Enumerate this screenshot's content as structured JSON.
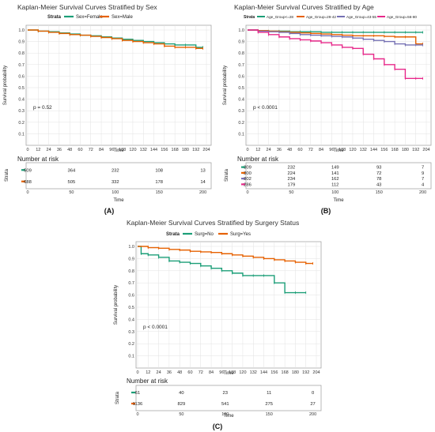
{
  "panels": [
    {
      "label": "(A)",
      "title": "Kaplan-Meier Survival Curves Stratified by Sex",
      "legend_title": "Strata",
      "ylabel": "Survival probability",
      "xlabel": "Time",
      "pvalue": "p = 0.52",
      "risk_title": "Number at risk",
      "risk_ylabel": "Strata",
      "risk_xlabel": "Time",
      "risk_rows": [
        [
          "509",
          "364",
          "232",
          "108",
          "13"
        ],
        [
          "688",
          "505",
          "332",
          "178",
          "14"
        ]
      ]
    },
    {
      "label": "(B)",
      "title": "Kaplan-Meier Survival Curves Stratified by Age",
      "legend_title": "Strata",
      "ylabel": "Survival probability",
      "xlabel": "Time",
      "pvalue": "p < 0.0001",
      "risk_title": "Number at risk",
      "risk_ylabel": "Strata",
      "risk_xlabel": "Time",
      "risk_rows": [
        [
          "309",
          "232",
          "149",
          "93",
          "7"
        ],
        [
          "300",
          "224",
          "141",
          "72",
          "9"
        ],
        [
          "302",
          "234",
          "162",
          "78",
          "7"
        ],
        [
          "286",
          "179",
          "112",
          "43",
          "4"
        ]
      ]
    },
    {
      "label": "(C)",
      "title": "Kaplan-Meier Survival Curves Stratified by Surgery Status",
      "legend_title": "Strata",
      "ylabel": "Survival probability",
      "xlabel": "Time",
      "pvalue": "p < 0.0001",
      "risk_title": "Number at risk",
      "risk_ylabel": "Strata",
      "risk_xlabel": "Time",
      "risk_rows": [
        [
          "61",
          "40",
          "23",
          "11",
          "0"
        ],
        [
          "1136",
          "829",
          "541",
          "275",
          "27"
        ]
      ]
    }
  ],
  "chart_data": [
    {
      "type": "line",
      "title": "Kaplan-Meier Survival Curves Stratified by Sex",
      "xlabel": "Time",
      "ylabel": "Survival probability",
      "xlim": [
        0,
        204
      ],
      "ylim": [
        0,
        1.0
      ],
      "x_ticks": [
        0,
        12,
        24,
        36,
        48,
        60,
        72,
        84,
        96,
        108,
        120,
        132,
        144,
        156,
        168,
        180,
        192,
        204
      ],
      "y_ticks": [
        0.1,
        0.2,
        0.3,
        0.4,
        0.5,
        0.6,
        0.7,
        0.8,
        0.9,
        1.0
      ],
      "grid": true,
      "legend_position": "top",
      "series": [
        {
          "name": "Sex=Female",
          "color": "#1b9e77",
          "x": [
            0,
            12,
            24,
            36,
            48,
            60,
            72,
            84,
            96,
            108,
            120,
            132,
            144,
            156,
            168,
            180,
            192,
            200
          ],
          "y": [
            1.0,
            0.99,
            0.985,
            0.975,
            0.965,
            0.955,
            0.95,
            0.94,
            0.93,
            0.92,
            0.91,
            0.9,
            0.89,
            0.88,
            0.87,
            0.87,
            0.85,
            0.85
          ]
        },
        {
          "name": "Sex=Male",
          "color": "#e66100",
          "x": [
            0,
            12,
            24,
            36,
            48,
            60,
            72,
            84,
            96,
            108,
            120,
            132,
            144,
            156,
            168,
            180,
            192,
            200
          ],
          "y": [
            1.0,
            0.99,
            0.98,
            0.97,
            0.96,
            0.955,
            0.945,
            0.935,
            0.925,
            0.91,
            0.9,
            0.89,
            0.88,
            0.86,
            0.85,
            0.85,
            0.84,
            0.84
          ]
        }
      ],
      "risk_table": {
        "x": [
          0,
          50,
          100,
          150,
          200
        ],
        "rows": [
          [
            509,
            364,
            232,
            108,
            13
          ],
          [
            688,
            505,
            332,
            178,
            14
          ]
        ]
      }
    },
    {
      "type": "line",
      "title": "Kaplan-Meier Survival Curves Stratified by Age",
      "xlabel": "Time",
      "ylabel": "Survival probability",
      "xlim": [
        0,
        204
      ],
      "ylim": [
        0,
        1.0
      ],
      "x_ticks": [
        0,
        12,
        24,
        36,
        48,
        60,
        72,
        84,
        96,
        108,
        120,
        132,
        144,
        156,
        168,
        180,
        192,
        204
      ],
      "y_ticks": [
        0.1,
        0.2,
        0.3,
        0.4,
        0.5,
        0.6,
        0.7,
        0.8,
        0.9,
        1.0
      ],
      "grid": true,
      "legend_position": "top",
      "series": [
        {
          "name": "Age_Group<=28",
          "color": "#1b9e77",
          "x": [
            0,
            12,
            24,
            36,
            48,
            60,
            72,
            84,
            96,
            108,
            120,
            132,
            144,
            156,
            168,
            180,
            192,
            200
          ],
          "y": [
            1.0,
            0.995,
            0.99,
            0.99,
            0.985,
            0.985,
            0.985,
            0.98,
            0.98,
            0.98,
            0.98,
            0.98,
            0.98,
            0.98,
            0.98,
            0.98,
            0.98,
            0.98
          ]
        },
        {
          "name": "Age_Group=29-42",
          "color": "#e66100",
          "x": [
            0,
            12,
            24,
            36,
            48,
            60,
            72,
            84,
            96,
            108,
            120,
            132,
            144,
            156,
            168,
            180,
            192,
            200
          ],
          "y": [
            1.0,
            0.995,
            0.99,
            0.985,
            0.98,
            0.975,
            0.97,
            0.965,
            0.96,
            0.955,
            0.95,
            0.95,
            0.95,
            0.945,
            0.94,
            0.94,
            0.88,
            0.88
          ]
        },
        {
          "name": "Age_Group=43-55",
          "color": "#7570b3",
          "x": [
            0,
            12,
            24,
            36,
            48,
            60,
            72,
            84,
            96,
            108,
            120,
            132,
            144,
            156,
            168,
            180,
            192,
            200
          ],
          "y": [
            1.0,
            0.99,
            0.985,
            0.98,
            0.97,
            0.96,
            0.955,
            0.95,
            0.945,
            0.94,
            0.93,
            0.92,
            0.91,
            0.9,
            0.88,
            0.87,
            0.87,
            0.87
          ]
        },
        {
          "name": "Age_Group=56-80",
          "color": "#e7298a",
          "x": [
            0,
            12,
            24,
            36,
            48,
            60,
            72,
            84,
            96,
            108,
            120,
            132,
            144,
            156,
            168,
            180,
            192,
            200
          ],
          "y": [
            1.0,
            0.98,
            0.96,
            0.94,
            0.925,
            0.915,
            0.905,
            0.89,
            0.87,
            0.85,
            0.84,
            0.79,
            0.75,
            0.7,
            0.66,
            0.58,
            0.58,
            0.58
          ]
        }
      ],
      "risk_table": {
        "x": [
          0,
          50,
          100,
          150,
          200
        ],
        "rows": [
          [
            309,
            232,
            149,
            93,
            7
          ],
          [
            300,
            224,
            141,
            72,
            9
          ],
          [
            302,
            234,
            162,
            78,
            7
          ],
          [
            286,
            179,
            112,
            43,
            4
          ]
        ]
      }
    },
    {
      "type": "line",
      "title": "Kaplan-Meier Survival Curves Stratified by Surgery Status",
      "xlabel": "Time",
      "ylabel": "Survival probability",
      "xlim": [
        0,
        204
      ],
      "ylim": [
        0,
        1.0
      ],
      "x_ticks": [
        0,
        12,
        24,
        36,
        48,
        60,
        72,
        84,
        96,
        108,
        120,
        132,
        144,
        156,
        168,
        180,
        192,
        204
      ],
      "y_ticks": [
        0.1,
        0.2,
        0.3,
        0.4,
        0.5,
        0.6,
        0.7,
        0.8,
        0.9,
        1.0
      ],
      "grid": true,
      "legend_position": "top",
      "series": [
        {
          "name": "Surg=No",
          "color": "#1b9e77",
          "x": [
            0,
            4,
            12,
            24,
            36,
            48,
            60,
            72,
            84,
            96,
            108,
            120,
            132,
            144,
            156,
            168,
            180,
            192
          ],
          "y": [
            1.0,
            0.94,
            0.93,
            0.91,
            0.88,
            0.87,
            0.86,
            0.84,
            0.82,
            0.8,
            0.78,
            0.76,
            0.76,
            0.76,
            0.7,
            0.62,
            0.62,
            0.62
          ]
        },
        {
          "name": "Surg=Yes",
          "color": "#e66100",
          "x": [
            0,
            12,
            24,
            36,
            48,
            60,
            72,
            84,
            96,
            108,
            120,
            132,
            144,
            156,
            168,
            180,
            192,
            200
          ],
          "y": [
            1.0,
            0.99,
            0.985,
            0.975,
            0.97,
            0.96,
            0.955,
            0.95,
            0.94,
            0.93,
            0.92,
            0.91,
            0.9,
            0.89,
            0.88,
            0.87,
            0.86,
            0.86
          ]
        }
      ],
      "risk_table": {
        "x": [
          0,
          50,
          100,
          150,
          200
        ],
        "rows": [
          [
            61,
            40,
            23,
            11,
            0
          ],
          [
            1136,
            829,
            541,
            275,
            27
          ]
        ]
      }
    }
  ]
}
